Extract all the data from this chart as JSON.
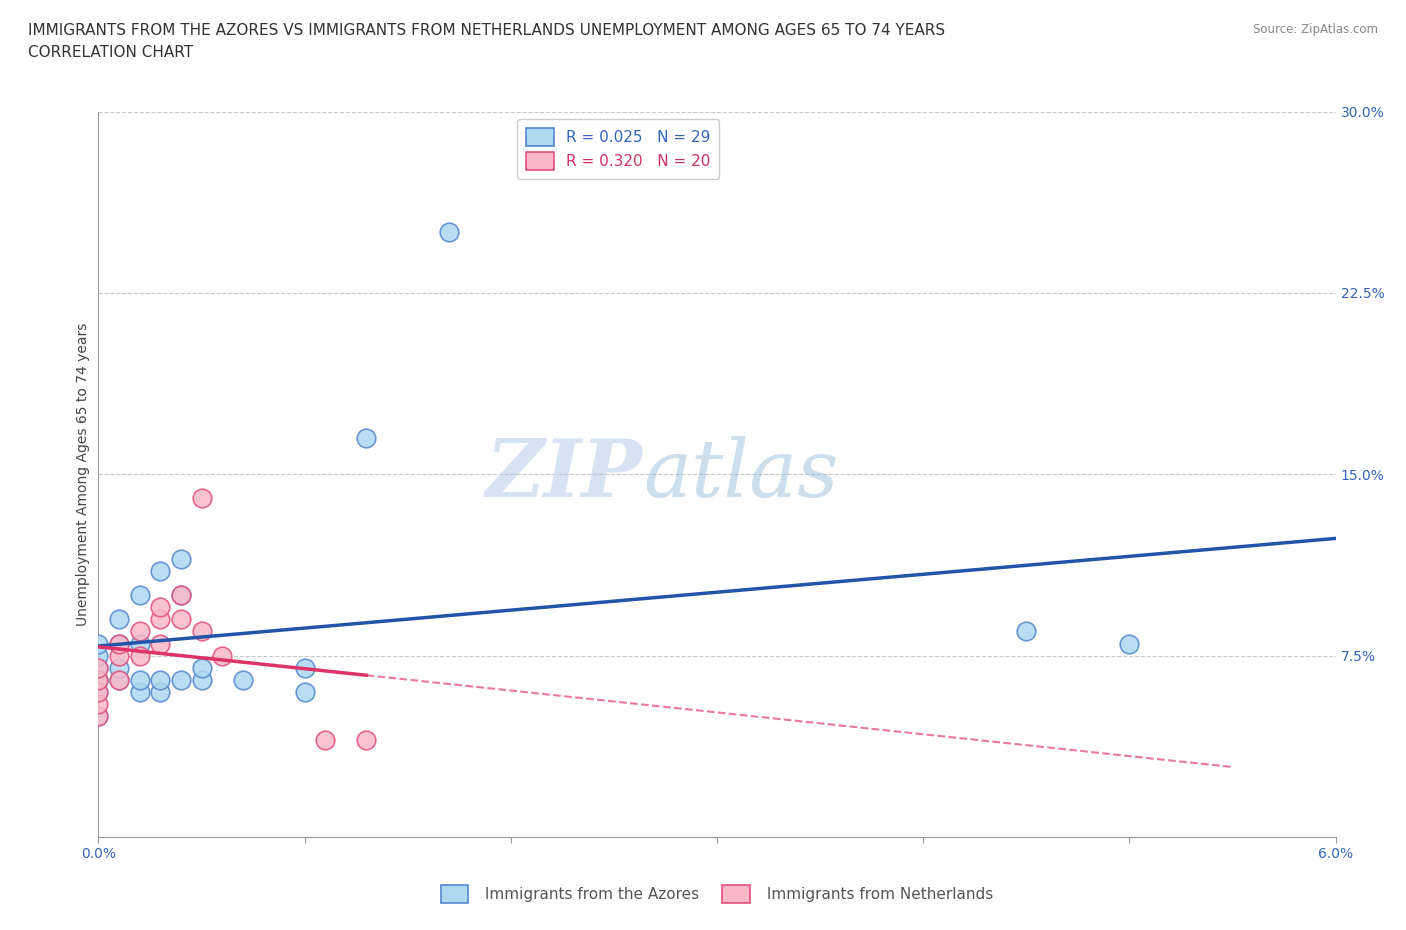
{
  "title_line1": "IMMIGRANTS FROM THE AZORES VS IMMIGRANTS FROM NETHERLANDS UNEMPLOYMENT AMONG AGES 65 TO 74 YEARS",
  "title_line2": "CORRELATION CHART",
  "source_text": "Source: ZipAtlas.com",
  "ylabel": "Unemployment Among Ages 65 to 74 years",
  "xlim": [
    0.0,
    0.06
  ],
  "ylim": [
    0.0,
    0.3
  ],
  "xticks": [
    0.0,
    0.01,
    0.02,
    0.03,
    0.04,
    0.05,
    0.06
  ],
  "xticklabels": [
    "0.0%",
    "",
    "",
    "",
    "",
    "",
    "6.0%"
  ],
  "yticks": [
    0.0,
    0.075,
    0.15,
    0.225,
    0.3
  ],
  "yticklabels": [
    "",
    "7.5%",
    "15.0%",
    "22.5%",
    "30.0%"
  ],
  "watermark_zip": "ZIP",
  "watermark_atlas": "atlas",
  "legend_r_azores": "R = 0.025",
  "legend_n_azores": "N = 29",
  "legend_r_netherlands": "R = 0.320",
  "legend_n_netherlands": "N = 20",
  "azores_color": "#add8f0",
  "netherlands_color": "#f9b8c8",
  "azores_edge": "#5588cc",
  "netherlands_edge": "#e05080",
  "trendline_azores_color": "#2255aa",
  "trendline_netherlands_color": "#dd3366",
  "background_color": "#ffffff",
  "grid_color": "#bbbbbb",
  "azores_scatter_x": [
    0.0,
    0.0,
    0.0,
    0.0,
    0.0,
    0.0,
    0.001,
    0.001,
    0.001,
    0.001,
    0.002,
    0.002,
    0.002,
    0.002,
    0.003,
    0.003,
    0.003,
    0.004,
    0.004,
    0.004,
    0.005,
    0.005,
    0.007,
    0.01,
    0.01,
    0.013,
    0.017,
    0.045,
    0.05
  ],
  "azores_scatter_y": [
    0.05,
    0.06,
    0.065,
    0.07,
    0.075,
    0.08,
    0.065,
    0.07,
    0.08,
    0.09,
    0.06,
    0.065,
    0.08,
    0.1,
    0.06,
    0.065,
    0.11,
    0.065,
    0.1,
    0.115,
    0.065,
    0.07,
    0.065,
    0.06,
    0.07,
    0.165,
    0.25,
    0.085,
    0.08
  ],
  "netherlands_scatter_x": [
    0.0,
    0.0,
    0.0,
    0.0,
    0.0,
    0.001,
    0.001,
    0.001,
    0.002,
    0.002,
    0.003,
    0.003,
    0.003,
    0.004,
    0.004,
    0.005,
    0.005,
    0.006,
    0.011,
    0.013
  ],
  "netherlands_scatter_y": [
    0.05,
    0.055,
    0.06,
    0.065,
    0.07,
    0.065,
    0.075,
    0.08,
    0.075,
    0.085,
    0.08,
    0.09,
    0.095,
    0.09,
    0.1,
    0.085,
    0.14,
    0.075,
    0.04,
    0.04
  ],
  "title_fontsize": 11,
  "axis_label_fontsize": 10,
  "tick_fontsize": 10,
  "legend_fontsize": 11
}
